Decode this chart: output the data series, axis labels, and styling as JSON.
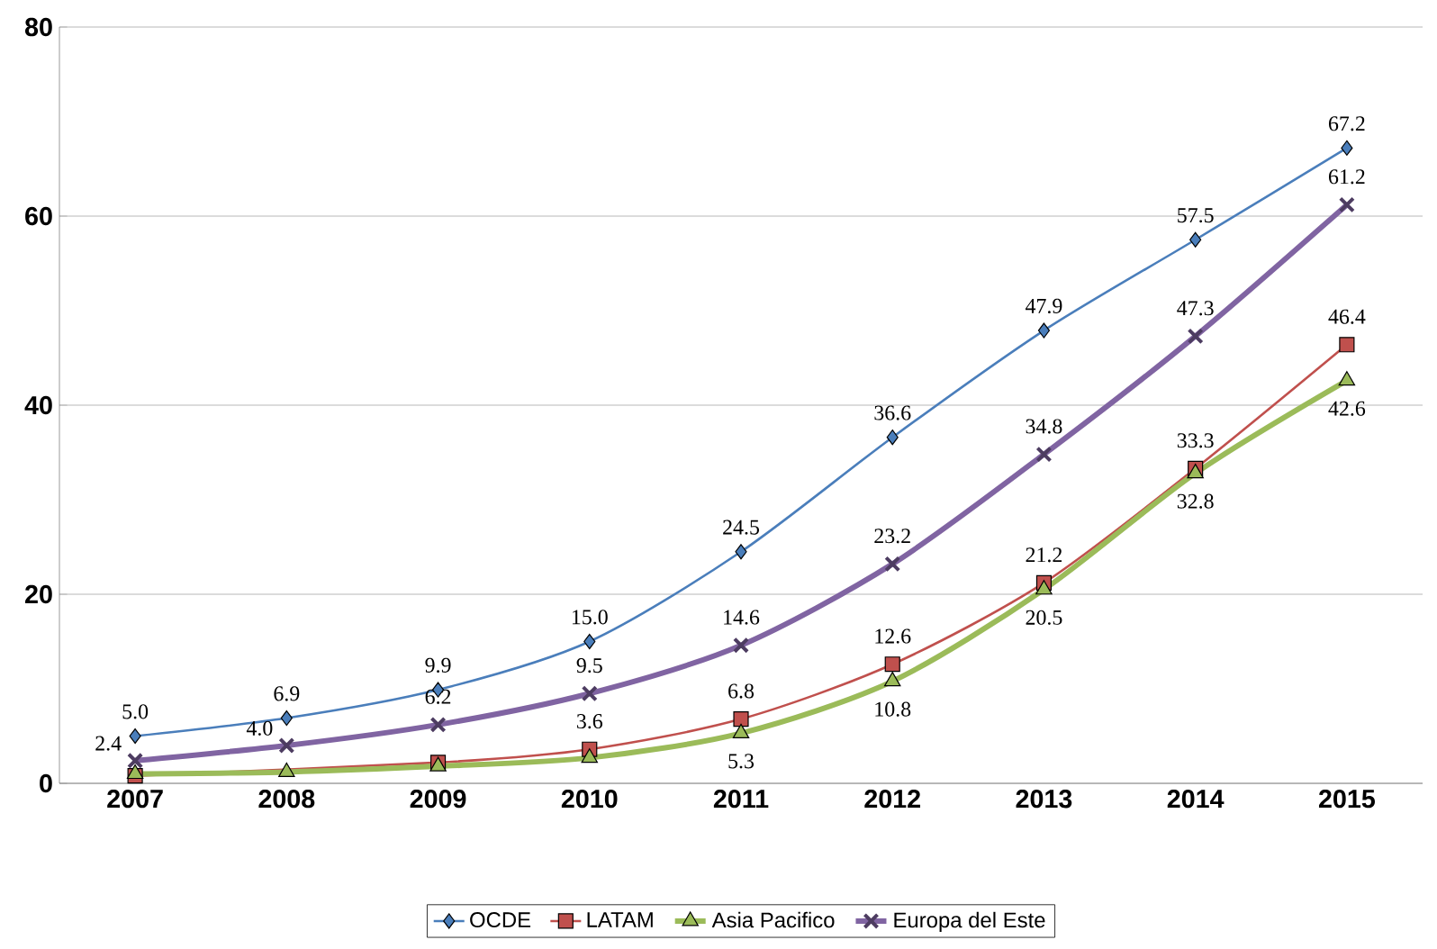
{
  "chart_data": {
    "type": "line",
    "categories": [
      "2007",
      "2008",
      "2009",
      "2010",
      "2011",
      "2012",
      "2013",
      "2014",
      "2015"
    ],
    "ylim": [
      0,
      80
    ],
    "yticks": [
      0,
      20,
      40,
      60,
      80
    ],
    "grid": "y",
    "legend": "bottom",
    "line_style": "solid",
    "series": [
      {
        "name": "OCDE",
        "color": "#4a7ebb",
        "marker": "diamond",
        "values": [
          5.0,
          6.9,
          9.9,
          15.0,
          24.5,
          36.6,
          47.9,
          57.5,
          67.2
        ],
        "value_labels": [
          "5.0",
          "6.9",
          "9.9",
          "15.0",
          "24.5",
          "36.6",
          "47.9",
          "57.5",
          "67.2"
        ]
      },
      {
        "name": "LATAM",
        "color": "#c0504d",
        "marker": "square",
        "values": [
          0.8,
          null,
          2.2,
          3.6,
          6.8,
          12.6,
          21.2,
          33.3,
          46.4
        ],
        "value_labels": [
          null,
          null,
          null,
          "3.6",
          "6.8",
          "12.6",
          "21.2",
          "33.3",
          "46.4"
        ]
      },
      {
        "name": "Asia Pacifico",
        "color": "#9bbb59",
        "marker": "triangle",
        "values": [
          1.0,
          1.2,
          1.8,
          2.7,
          5.3,
          10.8,
          20.5,
          32.8,
          42.6
        ],
        "value_labels": [
          null,
          null,
          null,
          null,
          "5.3",
          "10.8",
          "20.5",
          "32.8",
          "42.6"
        ]
      },
      {
        "name": "Europa del Este",
        "color": "#8064a2",
        "marker": "cross",
        "values": [
          2.4,
          4.0,
          6.2,
          9.5,
          14.6,
          23.2,
          34.8,
          47.3,
          61.2
        ],
        "value_labels": [
          "2.4",
          "4.0",
          "6.2",
          "9.5",
          "14.6",
          "23.2",
          "34.8",
          "47.3",
          "61.2"
        ]
      }
    ]
  }
}
